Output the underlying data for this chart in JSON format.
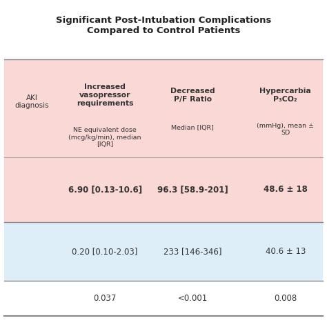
{
  "title_line1": "Significant Post-Intubation Complications",
  "title_line2": "Compared to Control Patients",
  "col0_header_line1": "AKI",
  "col0_header_line2": "diagnosis",
  "col1_header_bold": "Increased\nvasopressor\nrequirements",
  "col1_header_normal": "NE equivalent dose\n(mcg/kg/min), median\n[IQR]",
  "col2_header_bold": "Decreased\nP/F Ratio",
  "col2_header_normal": "Median [IQR]",
  "col3_header_bold": "Hypercarbia\nP₃CO₂",
  "col3_header_normal": "(mmHg), mean ±\nSD",
  "row1_col1": "6.90 [0.13-10.6]",
  "row1_col2": "96.3 [58.9-201]",
  "row1_col3": "48.6 ± 18",
  "row2_col1": "0.20 [0.10-2.03]",
  "row2_col2": "233 [146-346]",
  "row2_col3": "40.6 ± 13",
  "row3_col1": "0.037",
  "row3_col2": "<0.001",
  "row3_col3": "0.008",
  "pink_bg": "#f9d8d6",
  "blue_bg": "#ddeef8",
  "white_bg": "#ffffff",
  "text_color": "#333333",
  "title_color": "#222222",
  "line_color": "#888888"
}
